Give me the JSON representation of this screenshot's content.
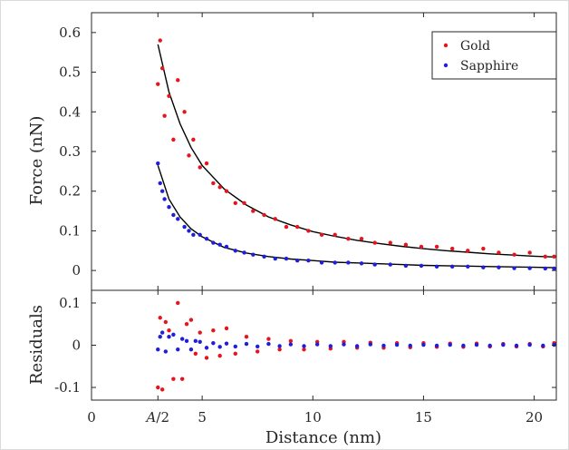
{
  "chart_data": [
    {
      "type": "scatter",
      "ylabel": "Force (nN)",
      "xlim": [
        0,
        21
      ],
      "ylim": [
        -0.05,
        0.65
      ],
      "yticks": [
        "0",
        "0.1",
        "0.2",
        "0.3",
        "0.4",
        "0.5",
        "0.6"
      ],
      "legend_position": "top-right",
      "series": [
        {
          "name": "Gold",
          "color": "#e8141c",
          "x": [
            3.0,
            3.1,
            3.2,
            3.3,
            3.5,
            3.7,
            3.9,
            4.2,
            4.4,
            4.6,
            4.9,
            5.2,
            5.5,
            5.8,
            6.1,
            6.5,
            6.9,
            7.3,
            7.8,
            8.3,
            8.8,
            9.3,
            9.8,
            10.4,
            11.0,
            11.6,
            12.2,
            12.8,
            13.5,
            14.2,
            14.9,
            15.6,
            16.3,
            17.0,
            17.7,
            18.4,
            19.1,
            19.8,
            20.5,
            20.9
          ],
          "y": [
            0.47,
            0.58,
            0.51,
            0.39,
            0.44,
            0.33,
            0.48,
            0.4,
            0.29,
            0.33,
            0.26,
            0.27,
            0.22,
            0.21,
            0.2,
            0.17,
            0.17,
            0.15,
            0.14,
            0.13,
            0.11,
            0.11,
            0.1,
            0.09,
            0.09,
            0.08,
            0.08,
            0.07,
            0.07,
            0.065,
            0.06,
            0.06,
            0.055,
            0.05,
            0.055,
            0.045,
            0.04,
            0.045,
            0.035,
            0.035
          ]
        },
        {
          "name": "Sapphire",
          "color": "#1e1edc",
          "x": [
            3.0,
            3.1,
            3.2,
            3.3,
            3.5,
            3.7,
            3.9,
            4.2,
            4.4,
            4.6,
            4.9,
            5.2,
            5.5,
            5.8,
            6.1,
            6.5,
            6.9,
            7.3,
            7.8,
            8.3,
            8.8,
            9.3,
            9.8,
            10.4,
            11.0,
            11.6,
            12.2,
            12.8,
            13.5,
            14.2,
            14.9,
            15.6,
            16.3,
            17.0,
            17.7,
            18.4,
            19.1,
            19.8,
            20.5,
            20.9
          ],
          "y": [
            0.27,
            0.22,
            0.2,
            0.18,
            0.16,
            0.14,
            0.13,
            0.11,
            0.1,
            0.09,
            0.09,
            0.08,
            0.07,
            0.065,
            0.06,
            0.05,
            0.045,
            0.04,
            0.035,
            0.03,
            0.03,
            0.025,
            0.025,
            0.02,
            0.02,
            0.02,
            0.018,
            0.015,
            0.015,
            0.012,
            0.012,
            0.01,
            0.01,
            0.01,
            0.008,
            0.008,
            0.006,
            0.006,
            0.005,
            0.005
          ]
        }
      ],
      "fits": [
        {
          "x": [
            3.0,
            3.5,
            4.0,
            4.5,
            5.0,
            6.0,
            7.0,
            8.0,
            9.0,
            10.0,
            11.0,
            12.0,
            13.0,
            14.0,
            15.0,
            16.0,
            17.0,
            18.0,
            19.0,
            20.0,
            21.0
          ],
          "y": [
            0.57,
            0.45,
            0.37,
            0.31,
            0.265,
            0.205,
            0.165,
            0.135,
            0.115,
            0.098,
            0.086,
            0.076,
            0.068,
            0.061,
            0.055,
            0.05,
            0.046,
            0.042,
            0.039,
            0.036,
            0.034
          ]
        },
        {
          "x": [
            3.0,
            3.5,
            4.0,
            4.5,
            5.0,
            6.0,
            7.0,
            8.0,
            9.0,
            10.0,
            11.0,
            12.0,
            13.0,
            14.0,
            15.0,
            16.0,
            17.0,
            18.0,
            19.0,
            20.0,
            21.0
          ],
          "y": [
            0.265,
            0.18,
            0.135,
            0.105,
            0.085,
            0.058,
            0.044,
            0.035,
            0.029,
            0.025,
            0.021,
            0.019,
            0.017,
            0.015,
            0.013,
            0.012,
            0.011,
            0.01,
            0.009,
            0.008,
            0.007
          ]
        }
      ]
    },
    {
      "type": "scatter",
      "xlabel": "Distance (nm)",
      "ylabel": "Residuals",
      "xlim": [
        0,
        21
      ],
      "ylim": [
        -0.13,
        0.13
      ],
      "xticks": [
        {
          "value": 0,
          "label": "0"
        },
        {
          "value": 3,
          "label": "A/2"
        },
        {
          "value": 5,
          "label": "5"
        },
        {
          "value": 10,
          "label": "10"
        },
        {
          "value": 15,
          "label": "15"
        },
        {
          "value": 20,
          "label": "20"
        }
      ],
      "yticks": [
        "-0.1",
        "0",
        "0.1"
      ],
      "series": [
        {
          "name": "Gold",
          "color": "#e8141c",
          "x": [
            3.0,
            3.1,
            3.2,
            3.35,
            3.5,
            3.7,
            3.9,
            4.1,
            4.3,
            4.5,
            4.7,
            4.9,
            5.2,
            5.5,
            5.8,
            6.1,
            6.5,
            7.0,
            7.5,
            8.0,
            8.5,
            9.0,
            9.6,
            10.2,
            10.8,
            11.4,
            12.0,
            12.6,
            13.2,
            13.8,
            14.4,
            15.0,
            15.6,
            16.2,
            16.8,
            17.4,
            18.0,
            18.6,
            19.2,
            19.8,
            20.4,
            20.9
          ],
          "y": [
            -0.1,
            0.065,
            -0.105,
            0.055,
            0.035,
            -0.08,
            0.1,
            -0.08,
            0.05,
            0.06,
            -0.02,
            0.03,
            -0.03,
            0.035,
            -0.025,
            0.04,
            -0.02,
            0.02,
            -0.015,
            0.015,
            -0.01,
            0.01,
            -0.01,
            0.008,
            -0.008,
            0.008,
            -0.006,
            0.006,
            -0.006,
            0.005,
            -0.005,
            0.005,
            -0.004,
            0.004,
            -0.004,
            0.004,
            -0.003,
            0.003,
            -0.003,
            0.003,
            -0.003,
            0.005
          ]
        },
        {
          "name": "Sapphire",
          "color": "#1e1edc",
          "x": [
            3.0,
            3.1,
            3.2,
            3.35,
            3.5,
            3.7,
            3.9,
            4.1,
            4.3,
            4.5,
            4.7,
            4.9,
            5.2,
            5.5,
            5.8,
            6.1,
            6.5,
            7.0,
            7.5,
            8.0,
            8.5,
            9.0,
            9.6,
            10.2,
            10.8,
            11.4,
            12.0,
            12.6,
            13.2,
            13.8,
            14.4,
            15.0,
            15.6,
            16.2,
            16.8,
            17.4,
            18.0,
            18.6,
            19.2,
            19.8,
            20.4,
            20.9
          ],
          "y": [
            -0.01,
            0.02,
            0.03,
            -0.015,
            0.02,
            0.025,
            -0.01,
            0.015,
            0.01,
            -0.01,
            0.01,
            0.008,
            -0.006,
            0.005,
            -0.004,
            0.004,
            -0.003,
            0.003,
            -0.003,
            0.003,
            -0.002,
            0.002,
            -0.002,
            0.002,
            -0.002,
            0.002,
            -0.002,
            0.002,
            -0.001,
            0.001,
            -0.001,
            0.001,
            -0.001,
            0.001,
            -0.001,
            0.001,
            -0.001,
            0.001,
            -0.001,
            0.001,
            -0.001,
            0.001
          ]
        }
      ]
    }
  ]
}
